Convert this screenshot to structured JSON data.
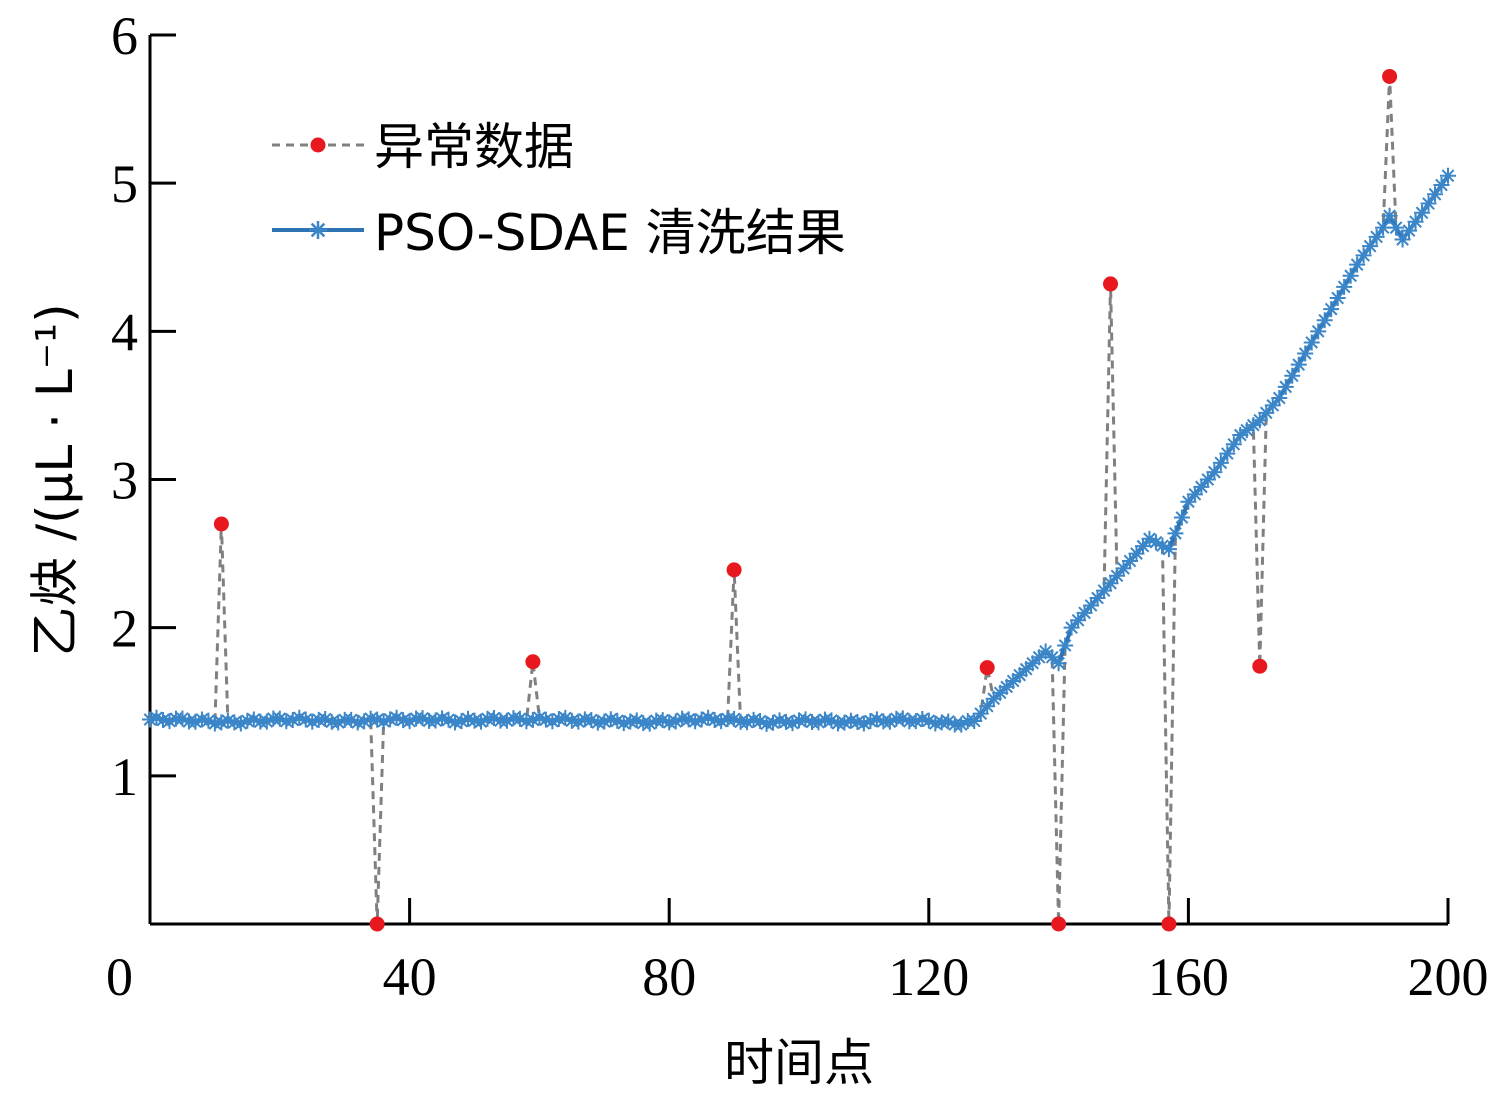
{
  "chart_data": {
    "type": "line",
    "xlabel": "时间点",
    "ylabel": "乙炔 /(μL · L⁻¹)",
    "xlim": [
      0,
      200
    ],
    "ylim": [
      0,
      6
    ],
    "xticks": [
      "0",
      "40",
      "80",
      "120",
      "160",
      "200"
    ],
    "yticks": [
      "1",
      "2",
      "3",
      "4",
      "5",
      "6"
    ],
    "grid": false,
    "legend_position": "top-left",
    "series": [
      {
        "name": "异常数据",
        "style": "dashed",
        "color": "#808080",
        "marker_color": "#e8191e",
        "anomalies": [
          {
            "x": 11,
            "y": 2.7
          },
          {
            "x": 35,
            "y": 0.0
          },
          {
            "x": 59,
            "y": 1.77
          },
          {
            "x": 90,
            "y": 2.39
          },
          {
            "x": 129,
            "y": 1.73
          },
          {
            "x": 140,
            "y": 0.0
          },
          {
            "x": 148,
            "y": 4.32
          },
          {
            "x": 157,
            "y": 0.0
          },
          {
            "x": 171,
            "y": 1.74
          },
          {
            "x": 191,
            "y": 5.72
          }
        ]
      },
      {
        "name": "PSO-SDAE 清洗结果",
        "style": "solid",
        "color": "#2e74b5",
        "x": [
          0,
          4,
          8,
          12,
          16,
          20,
          24,
          28,
          32,
          36,
          40,
          44,
          48,
          52,
          56,
          60,
          64,
          68,
          72,
          76,
          80,
          84,
          88,
          92,
          96,
          100,
          104,
          108,
          112,
          116,
          120,
          124,
          127,
          130,
          134,
          138,
          140,
          142,
          146,
          150,
          154,
          157,
          160,
          164,
          168,
          171,
          174,
          178,
          182,
          186,
          190,
          191,
          193,
          196,
          200
        ],
        "y": [
          1.38,
          1.38,
          1.37,
          1.36,
          1.37,
          1.38,
          1.38,
          1.37,
          1.37,
          1.38,
          1.38,
          1.38,
          1.37,
          1.38,
          1.38,
          1.38,
          1.38,
          1.37,
          1.37,
          1.36,
          1.37,
          1.38,
          1.38,
          1.37,
          1.36,
          1.37,
          1.37,
          1.36,
          1.37,
          1.38,
          1.37,
          1.35,
          1.37,
          1.52,
          1.68,
          1.84,
          1.76,
          2.0,
          2.2,
          2.4,
          2.6,
          2.53,
          2.85,
          3.05,
          3.3,
          3.4,
          3.55,
          3.85,
          4.15,
          4.45,
          4.7,
          4.78,
          4.62,
          4.8,
          5.05
        ]
      }
    ]
  }
}
